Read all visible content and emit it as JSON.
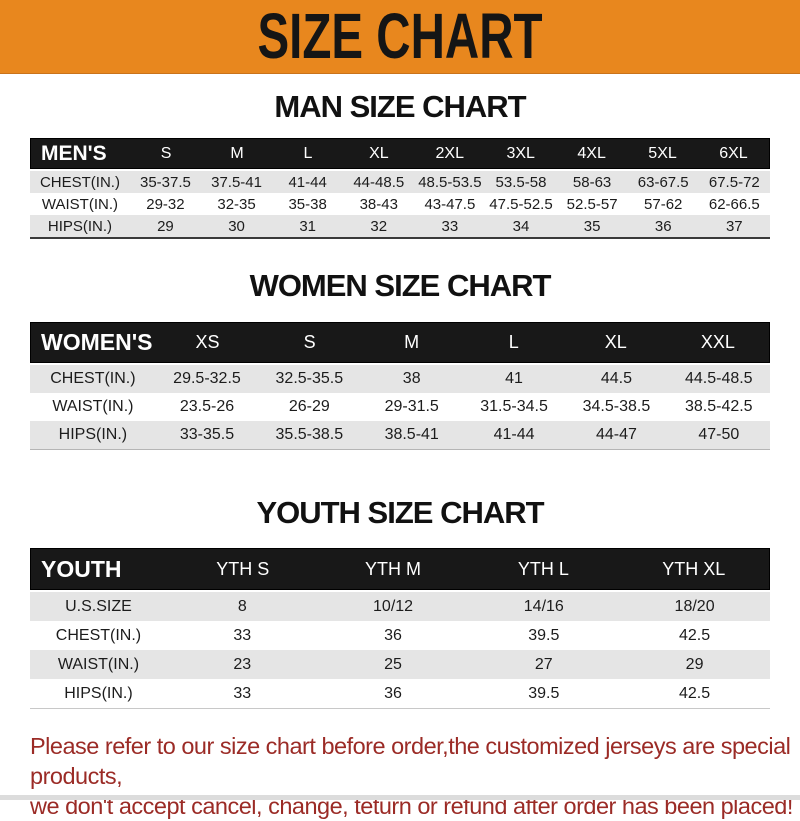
{
  "banner": {
    "title": "SIZE CHART",
    "bg_color": "#E8871E",
    "text_color": "#151515"
  },
  "sections": [
    {
      "heading": "MAN SIZE CHART",
      "table": {
        "header_label": "MEN'S",
        "columns": [
          "S",
          "M",
          "L",
          "XL",
          "2XL",
          "3XL",
          "4XL",
          "5XL",
          "6XL"
        ],
        "rows": [
          {
            "label": "CHEST(IN.)",
            "values": [
              "35-37.5",
              "37.5-41",
              "41-44",
              "44-48.5",
              "48.5-53.5",
              "53.5-58",
              "58-63",
              "63-67.5",
              "67.5-72"
            ]
          },
          {
            "label": "WAIST(IN.)",
            "values": [
              "29-32",
              "32-35",
              "35-38",
              "38-43",
              "43-47.5",
              "47.5-52.5",
              "52.5-57",
              "57-62",
              "62-66.5"
            ]
          },
          {
            "label": "HIPS(IN.)",
            "values": [
              "29",
              "30",
              "31",
              "32",
              "33",
              "34",
              "35",
              "36",
              "37"
            ]
          }
        ]
      }
    },
    {
      "heading": "WOMEN SIZE CHART",
      "table": {
        "header_label": "WOMEN'S",
        "columns": [
          "XS",
          "S",
          "M",
          "L",
          "XL",
          "XXL"
        ],
        "rows": [
          {
            "label": "CHEST(IN.)",
            "values": [
              "29.5-32.5",
              "32.5-35.5",
              "38",
              "41",
              "44.5",
              "44.5-48.5"
            ]
          },
          {
            "label": "WAIST(IN.)",
            "values": [
              "23.5-26",
              "26-29",
              "29-31.5",
              "31.5-34.5",
              "34.5-38.5",
              "38.5-42.5"
            ]
          },
          {
            "label": "HIPS(IN.)",
            "values": [
              "33-35.5",
              "35.5-38.5",
              "38.5-41",
              "41-44",
              "44-47",
              "47-50"
            ]
          }
        ]
      }
    },
    {
      "heading": "YOUTH SIZE CHART",
      "table": {
        "header_label": "YOUTH",
        "columns": [
          "YTH S",
          "YTH M",
          "YTH L",
          "YTH XL"
        ],
        "rows": [
          {
            "label": "U.S.SIZE",
            "values": [
              "8",
              "10/12",
              "14/16",
              "18/20"
            ]
          },
          {
            "label": "CHEST(IN.)",
            "values": [
              "33",
              "36",
              "39.5",
              "42.5"
            ]
          },
          {
            "label": "WAIST(IN.)",
            "values": [
              "23",
              "25",
              "27",
              "29"
            ]
          },
          {
            "label": "HIPS(IN.)",
            "values": [
              "33",
              "36",
              "39.5",
              "42.5"
            ]
          }
        ]
      }
    }
  ],
  "disclaimer": {
    "line1": "Please refer to our size chart before order,the customized jerseys are special products,",
    "line2": "we don't accept cancel, change, teturn or refund after order has been placed!",
    "color": "#9B2B26"
  },
  "style_colors": {
    "header_bar_bg": "#181818",
    "header_bar_text": "#FFFFFF",
    "stripe_row_bg": "#E5E5E5"
  }
}
